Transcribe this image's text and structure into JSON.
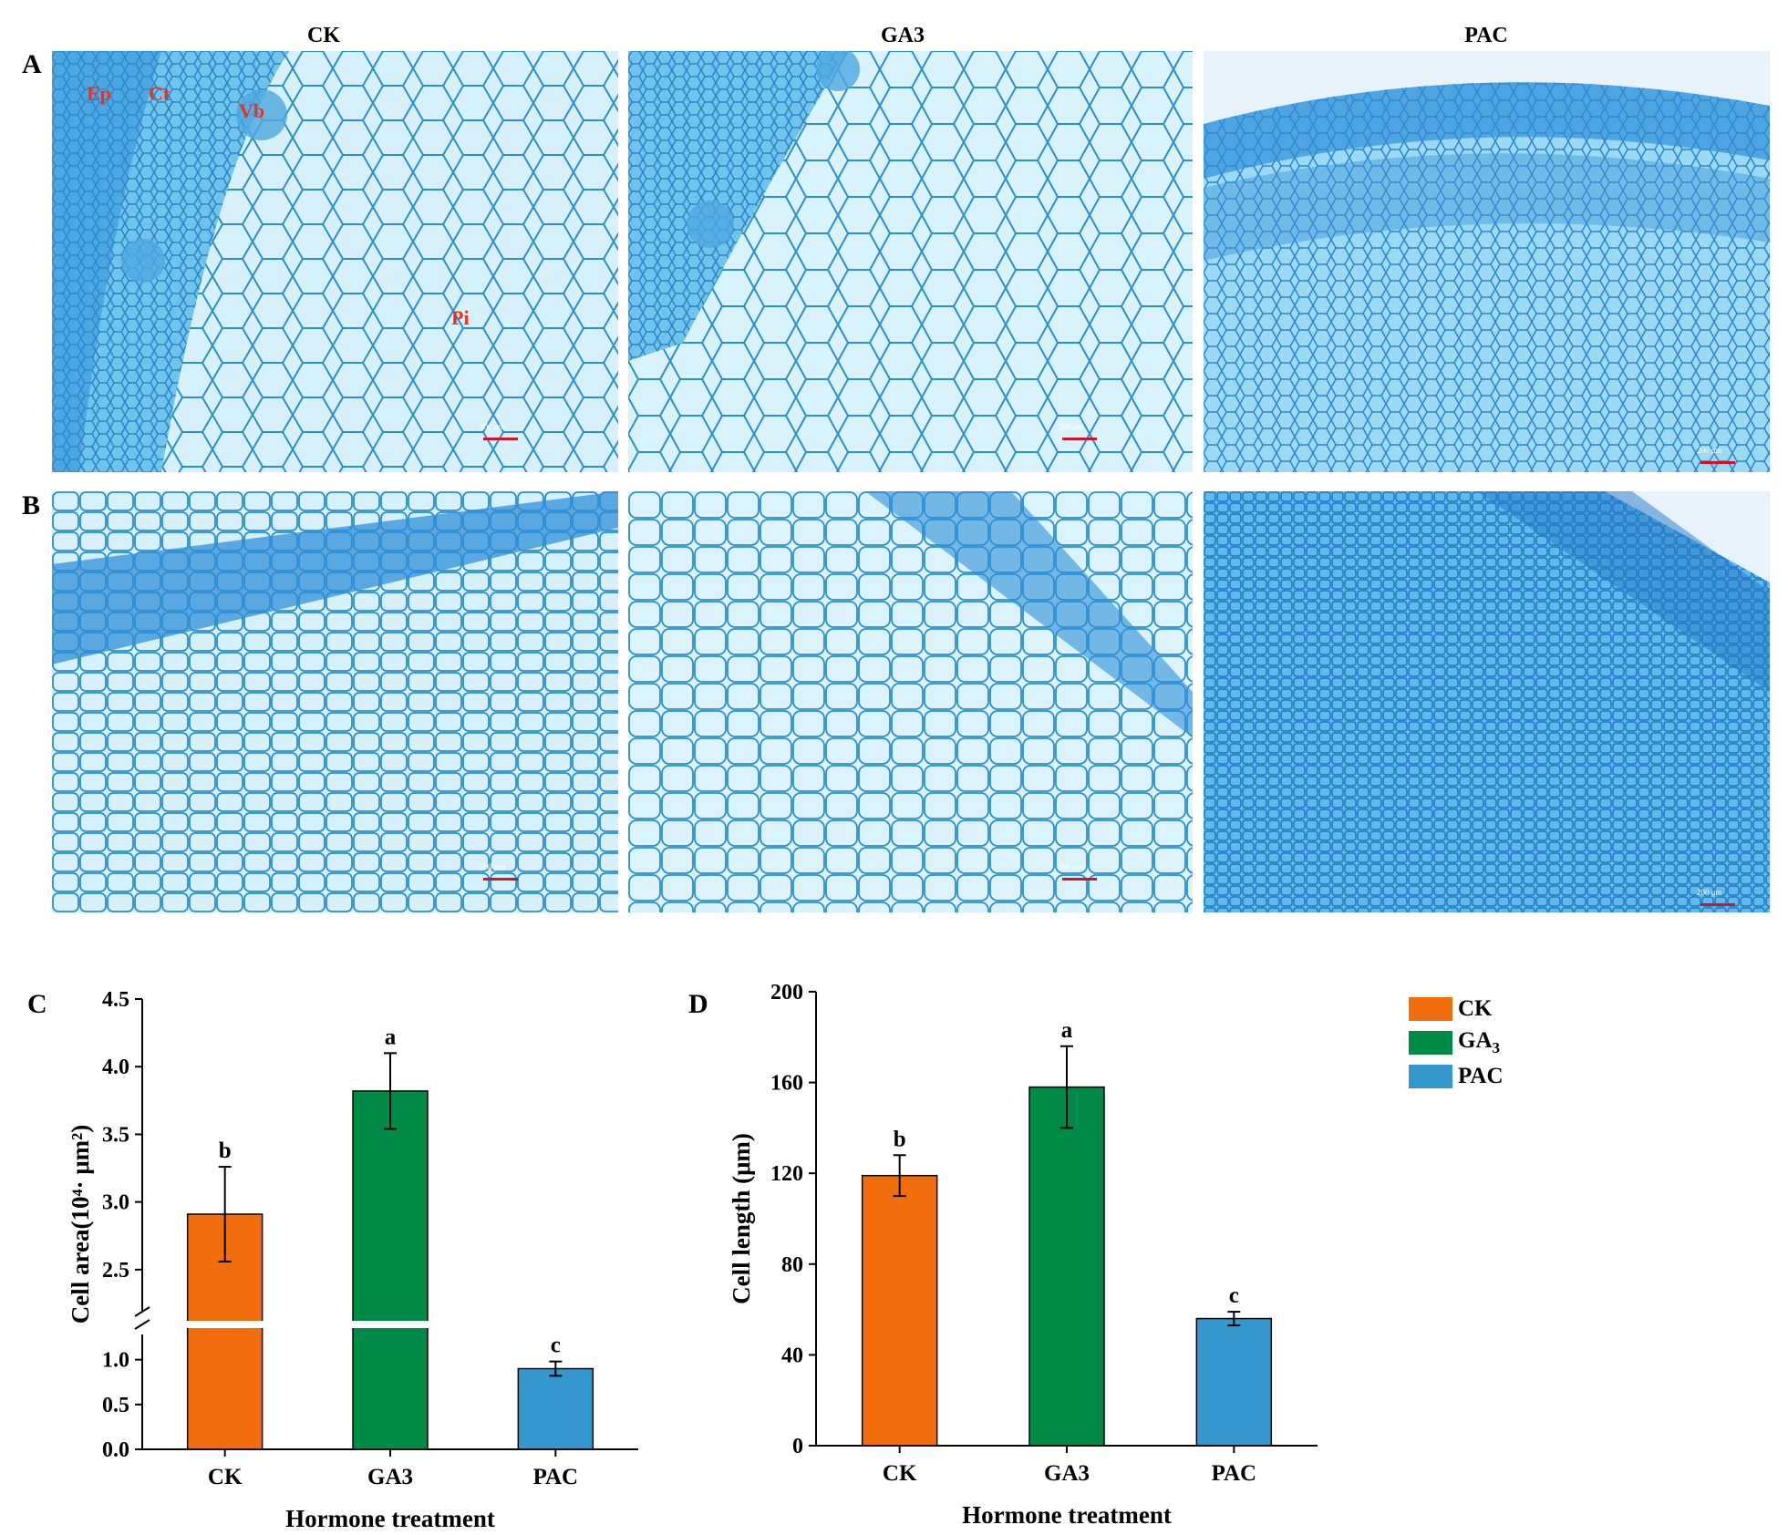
{
  "panels": {
    "a_letter": "A",
    "b_letter": "B",
    "c_letter": "C",
    "d_letter": "D",
    "column_titles": [
      "CK",
      "GA3",
      "PAC"
    ],
    "tissue_labels": {
      "ep": "Ep",
      "ct": "Ct",
      "vb": "Vb",
      "pi": "Pi"
    },
    "scale_bar": "200 μm"
  },
  "legend": {
    "items": [
      {
        "label": "CK",
        "color": "#f26d0c"
      },
      {
        "label": "GA",
        "sub": "3",
        "color": "#008a47"
      },
      {
        "label": "PAC",
        "color": "#3498cf"
      }
    ]
  },
  "chart_data": [
    {
      "type": "bar",
      "panel": "C",
      "categories": [
        "CK",
        "GA3",
        "PAC"
      ],
      "values": [
        2.91,
        3.82,
        0.9
      ],
      "errors": [
        0.35,
        0.28,
        0.08
      ],
      "letters": [
        "b",
        "a",
        "c"
      ],
      "colors": [
        "#f26d0c",
        "#008a47",
        "#3498cf"
      ],
      "xlabel": "Hormone treatment",
      "ylabel": "Cell area(10⁴· μm²)",
      "axis_break": true,
      "lower_range": [
        0,
        1.2
      ],
      "upper_range": [
        2.25,
        4.5
      ],
      "lower_ticks": [
        "0.0",
        "0.5",
        "1.0"
      ],
      "upper_ticks": [
        "2.5",
        "3.0",
        "3.5",
        "4.0",
        "4.5"
      ]
    },
    {
      "type": "bar",
      "panel": "D",
      "categories": [
        "CK",
        "GA3",
        "PAC"
      ],
      "values": [
        119,
        158,
        56
      ],
      "errors": [
        9,
        18,
        3
      ],
      "letters": [
        "b",
        "a",
        "c"
      ],
      "colors": [
        "#f26d0c",
        "#008a47",
        "#3498cf"
      ],
      "xlabel": "Hormone treatment",
      "ylabel": "Cell length (μm)",
      "ylim": [
        0,
        200
      ],
      "ticks": [
        "0",
        "40",
        "80",
        "120",
        "160",
        "200"
      ]
    }
  ]
}
